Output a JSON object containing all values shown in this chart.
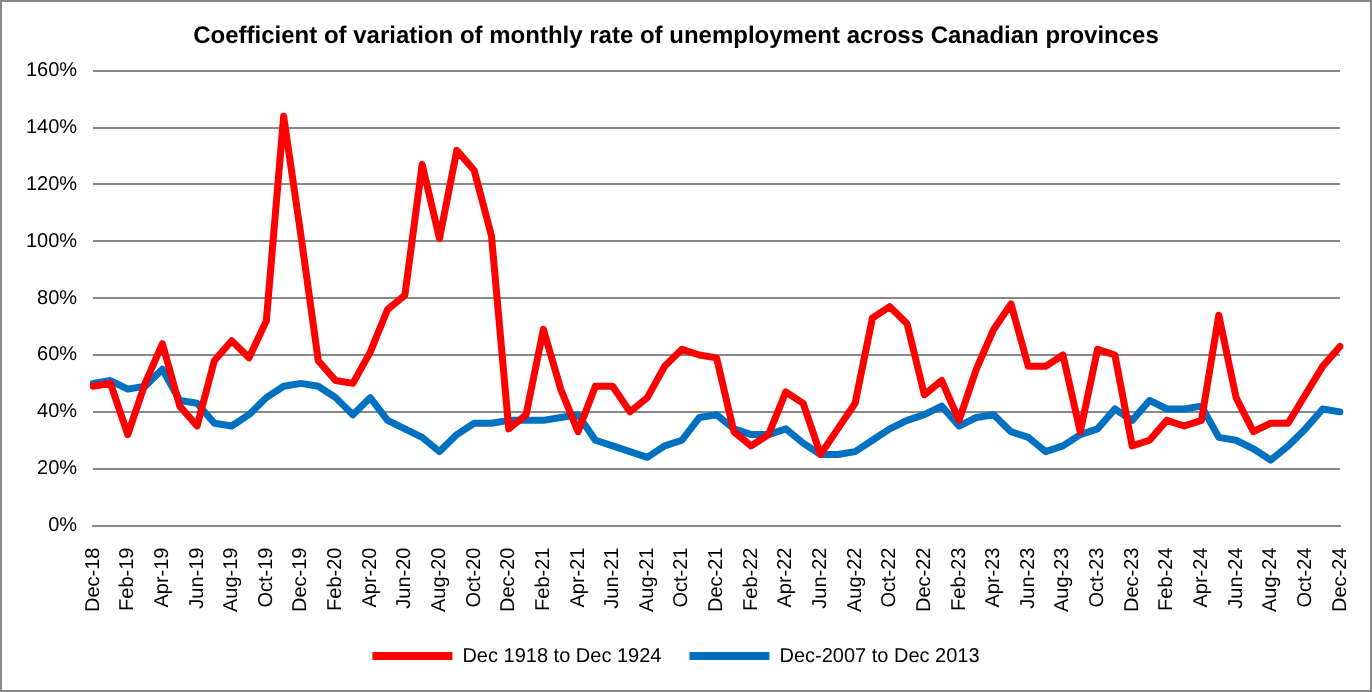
{
  "chart_data": {
    "type": "line",
    "title": "Coefficient of variation of monthly rate of unemployment across Canadian provinces",
    "categories": [
      "Dec-18",
      null,
      "Feb-19",
      null,
      "Apr-19",
      null,
      "Jun-19",
      null,
      "Aug-19",
      null,
      "Oct-19",
      null,
      "Dec-19",
      null,
      "Feb-20",
      null,
      "Apr-20",
      null,
      "Jun-20",
      null,
      "Aug-20",
      null,
      "Oct-20",
      null,
      "Dec-20",
      null,
      "Feb-21",
      null,
      "Apr-21",
      null,
      "Jun-21",
      null,
      "Aug-21",
      null,
      "Oct-21",
      null,
      "Dec-21",
      null,
      "Feb-22",
      null,
      "Apr-22",
      null,
      "Jun-22",
      null,
      "Aug-22",
      null,
      "Oct-22",
      null,
      "Dec-22",
      null,
      "Feb-23",
      null,
      "Apr-23",
      null,
      "Jun-23",
      null,
      "Aug-23",
      null,
      "Oct-23",
      null,
      "Dec-23",
      null,
      "Feb-24",
      null,
      "Apr-24",
      null,
      "Jun-24",
      null,
      "Aug-24",
      null,
      "Oct-24",
      null,
      "Dec-24"
    ],
    "series": [
      {
        "name": "Dec 1918 to Dec 1924",
        "color": "#ff0000",
        "values": [
          49,
          50,
          32,
          50,
          64,
          42,
          35,
          58,
          65,
          59,
          72,
          144,
          102,
          58,
          51,
          50,
          61,
          76,
          81,
          127,
          101,
          132,
          125,
          102,
          34,
          39,
          69,
          48,
          33,
          49,
          49,
          40,
          45,
          56,
          62,
          60,
          59,
          33,
          28,
          32,
          47,
          43,
          25,
          34,
          43,
          73,
          77,
          71,
          46,
          51,
          37,
          55,
          69,
          78,
          56,
          56,
          60,
          33,
          62,
          60,
          28,
          30,
          37,
          35,
          37,
          74,
          45,
          33,
          36,
          36,
          46,
          56,
          63
        ]
      },
      {
        "name": "Dec-2007 to Dec 2013",
        "color": "#0070c0",
        "values": [
          50,
          51,
          48,
          49,
          55,
          44,
          43,
          36,
          35,
          39,
          45,
          49,
          50,
          49,
          45,
          39,
          45,
          37,
          34,
          31,
          26,
          32,
          36,
          36,
          37,
          37,
          37,
          38,
          39,
          30,
          28,
          26,
          24,
          28,
          30,
          38,
          39,
          34,
          32,
          32,
          34,
          29,
          25,
          25,
          26,
          30,
          34,
          37,
          39,
          42,
          35,
          38,
          39,
          33,
          31,
          26,
          28,
          32,
          34,
          41,
          37,
          44,
          41,
          41,
          42,
          31,
          30,
          27,
          23,
          28,
          34,
          41,
          40
        ]
      }
    ],
    "ylim": [
      0,
      160
    ],
    "yticks": [
      {
        "value": 0,
        "label": "0%"
      },
      {
        "value": 20,
        "label": "20%"
      },
      {
        "value": 40,
        "label": "40%"
      },
      {
        "value": 60,
        "label": "60%"
      },
      {
        "value": 80,
        "label": "80%"
      },
      {
        "value": 100,
        "label": "100%"
      },
      {
        "value": 120,
        "label": "120%"
      },
      {
        "value": 140,
        "label": "140%"
      },
      {
        "value": 160,
        "label": "160%"
      }
    ],
    "grid": "y",
    "legend": "bottom",
    "marker": "none",
    "line_style": "solid"
  }
}
